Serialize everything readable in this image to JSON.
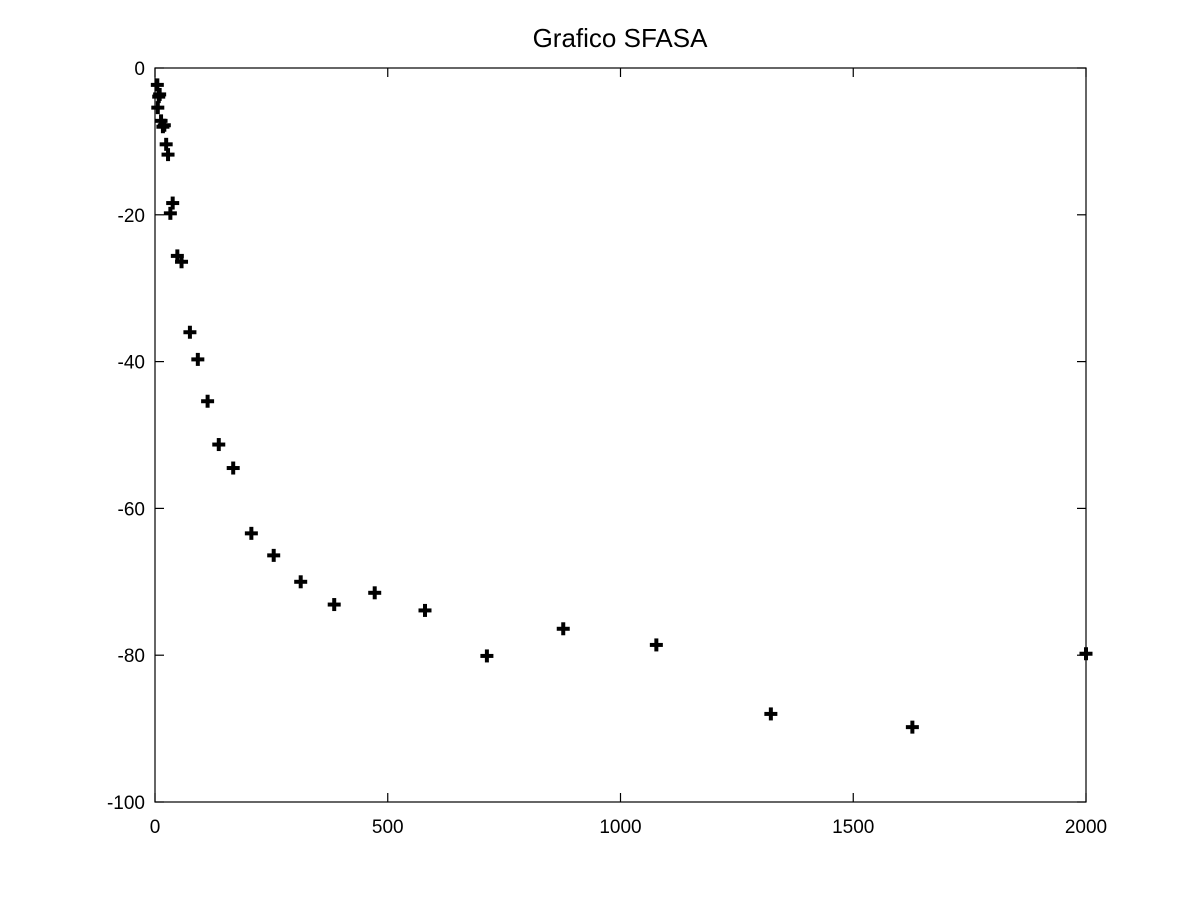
{
  "chart_data": {
    "type": "scatter",
    "title": "Grafico SFASA",
    "xlabel": "",
    "ylabel": "",
    "xlim": [
      0,
      2000
    ],
    "ylim": [
      -100,
      0
    ],
    "x_ticks": [
      0,
      500,
      1000,
      1500,
      2000
    ],
    "y_ticks": [
      0,
      -20,
      -40,
      -60,
      -80,
      -100
    ],
    "x_tick_labels": [
      "0",
      "500",
      "1000",
      "1500",
      "2000"
    ],
    "y_tick_labels": [
      "0",
      "-20",
      "-40",
      "-60",
      "-80",
      "-100"
    ],
    "grid": false,
    "marker": "plus",
    "marker_color": "#000000",
    "series": [
      {
        "x": [
          5,
          8,
          10,
          6,
          13,
          17,
          20,
          24,
          28,
          33,
          38,
          48,
          57,
          75,
          92,
          113,
          137,
          168,
          207,
          255,
          313,
          385,
          472,
          580,
          713,
          877,
          1077,
          1323,
          1627,
          2000
        ],
        "y": [
          -2.3,
          -3.9,
          -3.6,
          -5.4,
          -7.2,
          -8.0,
          -7.8,
          -10.4,
          -11.8,
          -19.8,
          -18.4,
          -25.6,
          -26.4,
          -36.0,
          -39.7,
          -45.4,
          -51.3,
          -54.5,
          -63.4,
          -66.4,
          -70.0,
          -73.1,
          -71.5,
          -73.9,
          -80.1,
          -76.4,
          -78.6,
          -88.0,
          -89.8,
          -79.8
        ]
      }
    ]
  }
}
